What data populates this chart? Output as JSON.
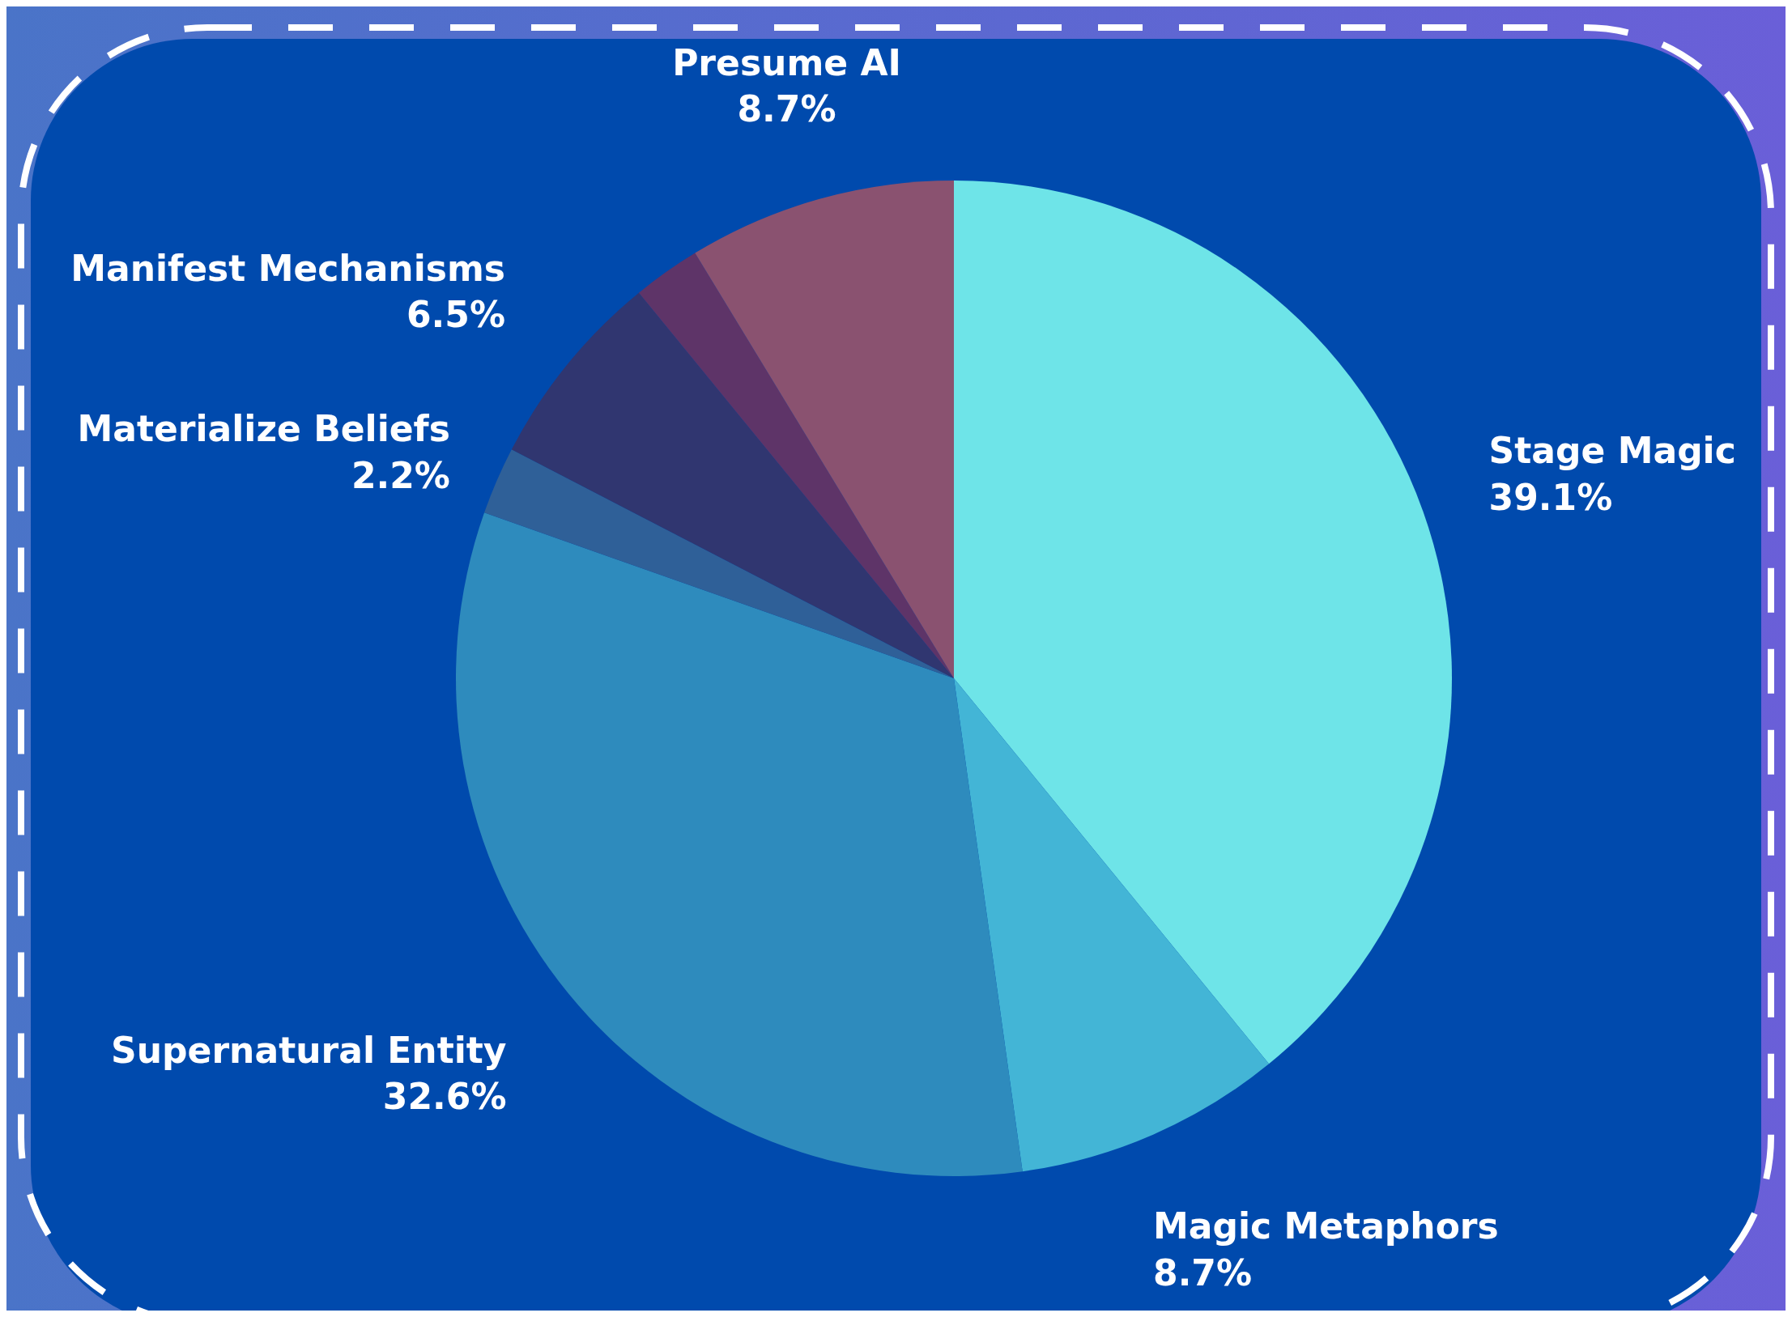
{
  "chart_data": {
    "type": "pie",
    "categories": [
      "Stage Magic",
      "Magic Metaphors",
      "Supernatural Entity",
      "Materialize Beliefs",
      "Manifest Mechanisms",
      null,
      "Presume AI"
    ],
    "values": [
      39.1,
      8.7,
      32.6,
      2.2,
      6.5,
      2.2,
      8.7
    ],
    "value_labels": [
      "39.1%",
      "8.7%",
      "32.6%",
      "2.2%",
      "6.5%",
      null,
      "8.7%"
    ],
    "colors": [
      "#6ee4e8",
      "#43b5d6",
      "#2e8bbd",
      "#2f6098",
      "#303670",
      "#5e3468",
      "#8a5270"
    ]
  }
}
